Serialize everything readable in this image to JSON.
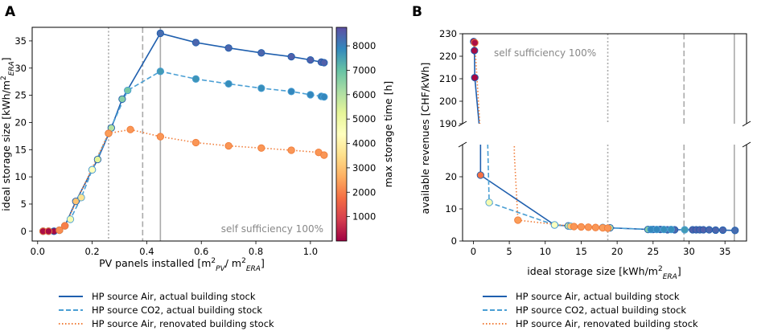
{
  "panel_labels": [
    "A",
    "B"
  ],
  "legend": [
    {
      "label": "HP source Air, actual building stock",
      "color": "#1f5fae",
      "style": "solid"
    },
    {
      "label": "HP source CO2, actual building stock",
      "color": "#4a9fd4",
      "style": "dashed"
    },
    {
      "label": "HP source Air, renovated building stock",
      "color": "#f07d3a",
      "style": "dotted"
    }
  ],
  "colorbar": {
    "label": "max storage time [h]",
    "range": [
      0,
      8760
    ],
    "ticks": [
      1000,
      2000,
      3000,
      4000,
      5000,
      6000,
      7000,
      8000
    ],
    "colors": [
      "#9e0142",
      "#d53e4f",
      "#f46d43",
      "#fdae61",
      "#fee08b",
      "#ffffbf",
      "#e6f598",
      "#abdda4",
      "#66c2a5",
      "#3288bd",
      "#5e4fa2"
    ]
  },
  "chart_data": [
    {
      "id": "A",
      "type": "line",
      "title": "",
      "xlabel": "PV panels installed [m²PV/ m²ERA]",
      "ylabel": "ideal storage size [kWh/m²ERA]",
      "xlim": [
        -0.02,
        1.08
      ],
      "ylim": [
        -1.8,
        37.5
      ],
      "xticks": [
        0.0,
        0.2,
        0.4,
        0.6,
        0.8,
        1.0
      ],
      "xtick_labels": [
        "0.0",
        "0.2",
        "0.4",
        "0.6",
        "0.8",
        "1.0"
      ],
      "yticks": [
        0,
        5,
        10,
        15,
        20,
        25,
        30,
        35
      ],
      "ytick_labels": [
        "0",
        "5",
        "10",
        "15",
        "20",
        "25",
        "30",
        "35"
      ],
      "annotation": "self sufficiency 100%",
      "vlines": [
        {
          "x": 0.26,
          "style": "dotted"
        },
        {
          "x": 0.385,
          "style": "dashed"
        },
        {
          "x": 0.45,
          "style": "solid"
        }
      ],
      "series": [
        {
          "name": "HP source Air, actual building stock",
          "style": "solid",
          "x": [
            0.02,
            0.04,
            0.06,
            0.08,
            0.1,
            0.14,
            0.2,
            0.22,
            0.27,
            0.31,
            0.45,
            0.58,
            0.7,
            0.82,
            0.93,
            1.0,
            1.04,
            1.05
          ],
          "y": [
            0,
            0,
            0,
            0.2,
            1.0,
            5.5,
            11.3,
            13.2,
            19.0,
            24.3,
            36.4,
            34.7,
            33.7,
            32.8,
            32.1,
            31.5,
            31.1,
            31.0
          ],
          "t": [
            200,
            150,
            120,
            2200,
            1800,
            3000,
            4000,
            5300,
            6000,
            6600,
            8300,
            8400,
            8400,
            8400,
            8500,
            8500,
            8500,
            8500
          ]
        },
        {
          "name": "HP source CO2, actual building stock",
          "style": "dashed",
          "x": [
            0.02,
            0.04,
            0.08,
            0.12,
            0.16,
            0.2,
            0.26,
            0.33,
            0.45,
            0.58,
            0.7,
            0.82,
            0.93,
            1.0,
            1.04,
            1.05
          ],
          "y": [
            0,
            0,
            0.2,
            2.2,
            6.2,
            11.3,
            18.0,
            25.9,
            29.4,
            28.0,
            27.1,
            26.3,
            25.7,
            25.1,
            24.8,
            24.7
          ],
          "t": [
            200,
            150,
            2400,
            4700,
            3600,
            4400,
            2600,
            6800,
            7600,
            7700,
            7800,
            7800,
            7900,
            7900,
            7900,
            7900
          ]
        },
        {
          "name": "HP source Air, renovated building stock",
          "style": "dotted",
          "x": [
            0.02,
            0.04,
            0.08,
            0.1,
            0.26,
            0.34,
            0.45,
            0.58,
            0.7,
            0.82,
            0.93,
            1.03,
            1.05
          ],
          "y": [
            0,
            0,
            0.2,
            1.0,
            18.0,
            18.7,
            17.4,
            16.3,
            15.7,
            15.3,
            14.9,
            14.5,
            14.0
          ],
          "t": [
            200,
            150,
            2200,
            2000,
            2400,
            2300,
            2300,
            2300,
            2300,
            2300,
            2300,
            2300,
            2300
          ]
        }
      ]
    },
    {
      "id": "B",
      "type": "line",
      "title": "",
      "xlabel": "ideal storage size [kWh/m²ERA]",
      "ylabel": "available revenues [CHF/kWh]",
      "xlim": [
        -1.5,
        38
      ],
      "xticks": [
        0,
        5,
        10,
        15,
        20,
        25,
        30,
        35
      ],
      "xtick_labels": [
        "0",
        "5",
        "10",
        "15",
        "20",
        "25",
        "30",
        "35"
      ],
      "ylim_upper": [
        190,
        230
      ],
      "yticks_upper": [
        190,
        200,
        210,
        220,
        230
      ],
      "ytick_labels_upper": [
        "190",
        "200",
        "210",
        "220",
        "230"
      ],
      "ylim_lower": [
        0,
        30
      ],
      "yticks_lower": [
        0,
        10,
        20
      ],
      "ytick_labels_lower": [
        "0",
        "10",
        "20"
      ],
      "annotation": "self sufficiency 100%",
      "vlines": [
        {
          "x": 18.7,
          "style": "dotted"
        },
        {
          "x": 29.3,
          "style": "dashed"
        },
        {
          "x": 36.3,
          "style": "solid"
        }
      ],
      "series": [
        {
          "name": "HP source Air, actual building stock",
          "style": "solid",
          "x": [
            0.05,
            0.15,
            0.2,
            0.8,
            1.0,
            11.3,
            13.2,
            19.0,
            24.3,
            25.0,
            26.0,
            27.0,
            28.0,
            30.5,
            31.0,
            31.5,
            32.0,
            32.8,
            33.7,
            34.7,
            36.4
          ],
          "y": [
            226.5,
            222.5,
            210.5,
            190.0,
            20.5,
            5.0,
            4.7,
            4.1,
            3.6,
            3.6,
            3.6,
            3.5,
            3.5,
            3.5,
            3.5,
            3.5,
            3.5,
            3.5,
            3.4,
            3.4,
            3.3
          ],
          "t": [
            200,
            150,
            120,
            1800,
            1800,
            4000,
            5300,
            6000,
            6600,
            8400,
            8400,
            8400,
            8400,
            8500,
            8500,
            8500,
            8500,
            8400,
            8400,
            8400,
            8300
          ]
        },
        {
          "name": "HP source CO2, actual building stock",
          "style": "dashed",
          "x": [
            0.3,
            2.0,
            2.2,
            11.3,
            13.5,
            18.0,
            24.7,
            25.5,
            26.5,
            27.5,
            29.4
          ],
          "y": [
            190.0,
            30.0,
            12.0,
            5.0,
            4.6,
            4.2,
            3.6,
            3.6,
            3.6,
            3.6,
            3.5
          ],
          "t": [
            200,
            4700,
            4700,
            4400,
            3000,
            2600,
            7900,
            7900,
            7800,
            7800,
            7600
          ],
          "markers_from": 2
        },
        {
          "name": "HP source Air, renovated building stock",
          "style": "dotted",
          "x": [
            0.2,
            0.9,
            5.7,
            6.2,
            14.0,
            15.0,
            16.0,
            17.0,
            18.0,
            18.7
          ],
          "y": [
            226.0,
            190.0,
            27.0,
            6.5,
            4.5,
            4.4,
            4.3,
            4.2,
            4.1,
            4.0
          ],
          "t": [
            200,
            200,
            2400,
            2400,
            2300,
            2300,
            2300,
            2300,
            2400,
            2300
          ],
          "markers_from": 3
        }
      ]
    }
  ]
}
